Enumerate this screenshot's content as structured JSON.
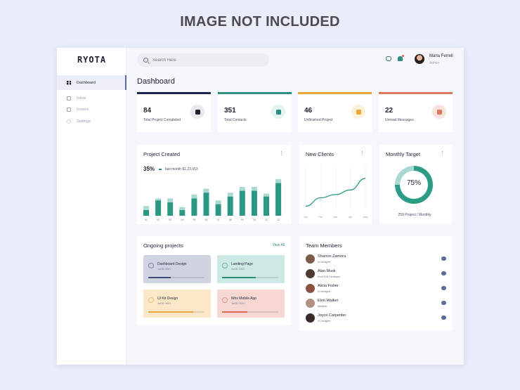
{
  "banner": "IMAGE NOT INCLUDED",
  "sidebar": {
    "logo": "RYOTA",
    "items": [
      {
        "label": "Dashboard",
        "icon": "grid-icon"
      },
      {
        "label": "Inbox",
        "icon": "inbox-icon"
      },
      {
        "label": "Invoice",
        "icon": "invoice-icon"
      },
      {
        "label": "Settings",
        "icon": "gear-icon"
      }
    ]
  },
  "header": {
    "search_placeholder": "Search Here",
    "user_name": "Marla Ferrell",
    "user_role": "Admin"
  },
  "page_title": "Dashboard",
  "stats": [
    {
      "value": "84",
      "label": "Total Project Completed",
      "accent": "#1f2750",
      "badge_bg": "#e8eaf0",
      "icon_color": "#1f2233"
    },
    {
      "value": "351",
      "label": "Total Contacts",
      "accent": "#2c8f7e",
      "badge_bg": "#e3f3ef",
      "icon_color": "#2c8f7e"
    },
    {
      "value": "46",
      "label": "Unfinished Project",
      "accent": "#e8a93a",
      "badge_bg": "#fdf1dc",
      "icon_color": "#e8a93a"
    },
    {
      "value": "22",
      "label": "Unread Messages",
      "accent": "#e0765c",
      "badge_bg": "#fbe4de",
      "icon_color": "#e0765c"
    }
  ],
  "project_created": {
    "title": "Project Created",
    "percent": "35%",
    "subtitle": "last month $1,23,653"
  },
  "new_clients": {
    "title": "New Clients"
  },
  "monthly_target": {
    "title": "Monthly Target",
    "percent_label": "75%",
    "subtitle": "250 Project / Monthly"
  },
  "chart_data": [
    {
      "type": "bar",
      "categories": [
        "01",
        "02",
        "03",
        "04",
        "05",
        "06",
        "07",
        "08",
        "09",
        "10",
        "11",
        "12"
      ],
      "series": [
        {
          "values": [
            3,
            8,
            7,
            3,
            9,
            12,
            6,
            10,
            13,
            13,
            10,
            17
          ]
        },
        {
          "values": [
            2,
            1,
            2,
            1.5,
            2,
            2,
            2,
            2,
            2,
            2,
            1.5,
            2
          ]
        }
      ],
      "ylim": [
        0,
        19
      ]
    },
    {
      "type": "line",
      "x": [
        "Jan",
        "Feb",
        "Mar",
        "Apr",
        "May"
      ],
      "values": [
        10,
        28,
        35,
        45,
        70
      ],
      "ylim": [
        0,
        100
      ]
    }
  ],
  "ongoing": {
    "title": "Ongoing projects",
    "view_all": "View All",
    "projects": [
      {
        "name": "Dashboard Design",
        "date": "Jul 20, 2021",
        "bg": "#cfd3e2",
        "color": "#3d4a7a",
        "progress": 0.4
      },
      {
        "name": "Landing Page",
        "date": "Jul 20, 2021",
        "bg": "#cde9e4",
        "color": "#2c8f7e",
        "progress": 0.6
      },
      {
        "name": "UI Kit Design",
        "date": "Jul 20, 2021",
        "bg": "#fbe8c8",
        "color": "#e8a93a",
        "progress": 0.8
      },
      {
        "name": "Wrix Mobile App",
        "date": "Jul 20, 2021",
        "bg": "#f7d7d2",
        "color": "#e06a5a",
        "progress": 0.45
      }
    ]
  },
  "team": {
    "title": "Team Members",
    "members": [
      {
        "name": "Sharron Zamora",
        "role": "UI Designer",
        "avatar_color": "#7a5a48"
      },
      {
        "name": "Alan Musk",
        "role": "Front End Developer",
        "avatar_color": "#4f3a30"
      },
      {
        "name": "Alicia Fisher",
        "role": "UI Designer",
        "avatar_color": "#8a5040"
      },
      {
        "name": "Elon Walker",
        "role": "Marketer",
        "avatar_color": "#b09080"
      },
      {
        "name": "Joyce Carpenter",
        "role": "UI Designer",
        "avatar_color": "#3a2a28"
      }
    ]
  }
}
